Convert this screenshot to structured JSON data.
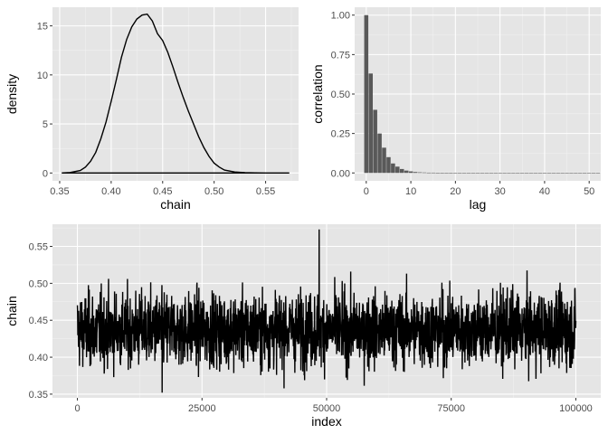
{
  "chart_data": [
    {
      "id": "density",
      "type": "line",
      "xlabel": "chain",
      "ylabel": "density",
      "xlim": [
        0.343,
        0.582
      ],
      "ylim": [
        -0.8,
        16.9
      ],
      "xticks": [
        0.35,
        0.4,
        0.45,
        0.5,
        0.55
      ],
      "xtick_labels": [
        "0.35",
        "0.40",
        "0.45",
        "0.50",
        "0.55"
      ],
      "yticks": [
        0,
        5,
        10,
        15
      ],
      "ytick_labels": [
        "0",
        "5",
        "10",
        "15"
      ],
      "grid": true,
      "x": [
        0.352,
        0.36,
        0.37,
        0.375,
        0.38,
        0.385,
        0.39,
        0.395,
        0.4,
        0.405,
        0.41,
        0.415,
        0.42,
        0.425,
        0.43,
        0.435,
        0.44,
        0.445,
        0.45,
        0.455,
        0.46,
        0.465,
        0.47,
        0.475,
        0.48,
        0.485,
        0.49,
        0.495,
        0.5,
        0.505,
        0.51,
        0.52,
        0.53,
        0.54,
        0.55,
        0.573
      ],
      "values": [
        0.0,
        0.05,
        0.25,
        0.6,
        1.2,
        2.1,
        3.5,
        5.2,
        7.3,
        9.5,
        11.8,
        13.6,
        14.9,
        15.7,
        16.1,
        16.2,
        15.5,
        14.2,
        13.5,
        12.3,
        10.8,
        9.2,
        7.7,
        6.3,
        5.0,
        3.7,
        2.6,
        1.7,
        1.0,
        0.6,
        0.3,
        0.1,
        0.04,
        0.01,
        0.0,
        0.0
      ],
      "baseline": 0
    },
    {
      "id": "acf",
      "type": "bar",
      "xlabel": "lag",
      "ylabel": "correlation",
      "xlim": [
        -2.6,
        52.6
      ],
      "ylim": [
        -0.05,
        1.05
      ],
      "xticks": [
        0,
        10,
        20,
        30,
        40,
        50
      ],
      "xtick_labels": [
        "0",
        "10",
        "20",
        "30",
        "40",
        "50"
      ],
      "yticks": [
        0.0,
        0.25,
        0.5,
        0.75,
        1.0
      ],
      "ytick_labels": [
        "0.00",
        "0.25",
        "0.50",
        "0.75",
        "1.00"
      ],
      "grid": true,
      "categories": [
        0,
        1,
        2,
        3,
        4,
        5,
        6,
        7,
        8,
        9,
        10,
        11,
        12,
        13,
        14,
        15,
        16,
        17,
        18,
        19,
        20,
        21,
        22,
        23,
        24,
        25,
        26,
        27,
        28,
        29,
        30,
        31,
        32,
        33,
        34,
        35,
        36,
        37,
        38,
        39,
        40,
        41,
        42,
        43,
        44,
        45,
        46,
        47,
        48,
        49,
        50,
        51,
        52
      ],
      "values": [
        1.0,
        0.63,
        0.4,
        0.25,
        0.16,
        0.1,
        0.06,
        0.04,
        0.025,
        0.015,
        0.01,
        0.006,
        0.004,
        0.003,
        0.002,
        0.002,
        0.001,
        0.001,
        0.001,
        0.001,
        0.0,
        0.0,
        0.0,
        0.0,
        0.0,
        0.0,
        0.0,
        0.0,
        0.0,
        0.0,
        0.0,
        0.0,
        0.0,
        0.0,
        0.0,
        0.0,
        0.0,
        0.0,
        0.0,
        0.0,
        0.0,
        0.0,
        0.0,
        0.0,
        0.0,
        0.0,
        0.0,
        0.0,
        0.0,
        0.0,
        0.0,
        0.0,
        0.0
      ]
    },
    {
      "id": "trace",
      "type": "line",
      "xlabel": "index",
      "ylabel": "chain",
      "xlim": [
        -5000,
        105000
      ],
      "ylim": [
        0.345,
        0.58
      ],
      "xticks": [
        0,
        25000,
        50000,
        75000,
        100000
      ],
      "xtick_labels": [
        "0",
        "25000",
        "50000",
        "75000",
        "100000"
      ],
      "yticks": [
        0.35,
        0.4,
        0.45,
        0.5,
        0.55
      ],
      "ytick_labels": [
        "0.35",
        "0.40",
        "0.45",
        "0.50",
        "0.55"
      ],
      "grid": true,
      "n_points": 100000,
      "mean": 0.437,
      "sd": 0.025,
      "x_min": 0,
      "x_max": 100000,
      "observed_max": 0.573,
      "observed_max_at": 48500,
      "observed_min": 0.352,
      "observed_min_at": 17000
    }
  ]
}
